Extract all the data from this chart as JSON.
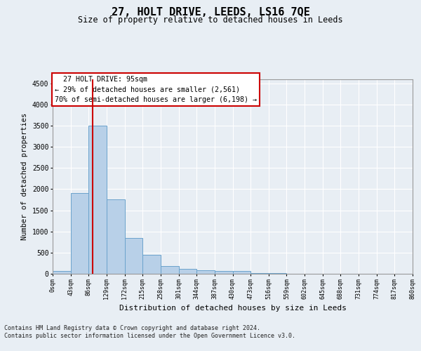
{
  "title": "27, HOLT DRIVE, LEEDS, LS16 7QE",
  "subtitle": "Size of property relative to detached houses in Leeds",
  "xlabel": "Distribution of detached houses by size in Leeds",
  "ylabel": "Number of detached properties",
  "property_size": 95,
  "pct_smaller": 29,
  "n_smaller": "2,561",
  "pct_larger_semi": 70,
  "n_larger_semi": "6,198",
  "bin_edges": [
    0,
    43,
    86,
    129,
    172,
    215,
    258,
    301,
    344,
    387,
    430,
    473,
    516,
    559,
    602,
    645,
    688,
    731,
    774,
    817,
    860
  ],
  "bin_counts": [
    60,
    1900,
    3500,
    1750,
    850,
    440,
    190,
    120,
    90,
    65,
    60,
    15,
    10,
    8,
    5,
    4,
    3,
    2,
    1,
    1
  ],
  "bar_color": "#b8d0e8",
  "bar_edge_color": "#6ba3cc",
  "vline_color": "#cc0000",
  "annotation_box_color": "#cc0000",
  "background_color": "#e8eef4",
  "grid_color": "#ffffff",
  "footer_line1": "Contains HM Land Registry data © Crown copyright and database right 2024.",
  "footer_line2": "Contains public sector information licensed under the Open Government Licence v3.0.",
  "ylim": [
    0,
    4600
  ],
  "yticks": [
    0,
    500,
    1000,
    1500,
    2000,
    2500,
    3000,
    3500,
    4000,
    4500
  ],
  "tick_labels": [
    "0sqm",
    "43sqm",
    "86sqm",
    "129sqm",
    "172sqm",
    "215sqm",
    "258sqm",
    "301sqm",
    "344sqm",
    "387sqm",
    "430sqm",
    "473sqm",
    "516sqm",
    "559sqm",
    "602sqm",
    "645sqm",
    "688sqm",
    "731sqm",
    "774sqm",
    "817sqm",
    "860sqm"
  ]
}
